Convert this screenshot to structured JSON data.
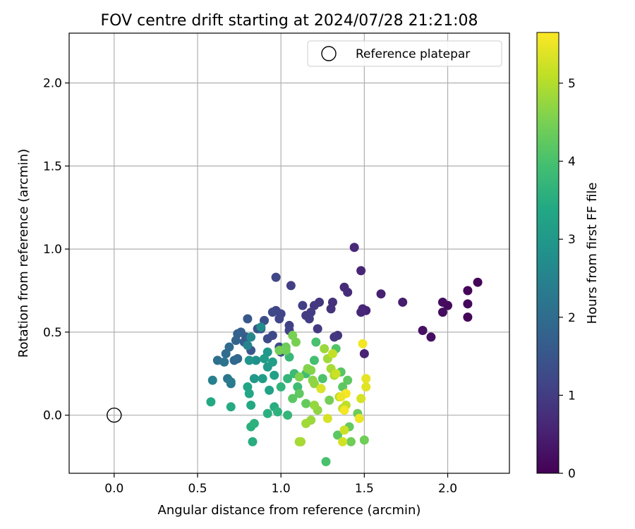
{
  "chart_data": {
    "type": "scatter",
    "title": "FOV centre drift starting at 2024/07/28 21:21:08",
    "xlabel": "Angular distance from reference (arcmin)",
    "ylabel": "Rotation from reference (arcmin)",
    "xlim": [
      -0.27,
      2.37
    ],
    "ylim": [
      -0.35,
      2.3
    ],
    "x_ticks": [
      0.0,
      0.5,
      1.0,
      1.5,
      2.0
    ],
    "x_tick_labels": [
      "0.0",
      "0.5",
      "1.0",
      "1.5",
      "2.0"
    ],
    "y_ticks": [
      0.0,
      0.5,
      1.0,
      1.5,
      2.0
    ],
    "y_tick_labels": [
      "0.0",
      "0.5",
      "1.0",
      "1.5",
      "2.0"
    ],
    "grid": true,
    "legend": {
      "placement": "top-right",
      "entries": [
        "Reference platepar"
      ]
    },
    "reference_point": {
      "x": 0.0,
      "y": 0.0,
      "label": "Reference platepar"
    },
    "colorbar": {
      "label": "Hours from first FF file",
      "range": [
        0,
        5.65
      ],
      "ticks": [
        0,
        1,
        2,
        3,
        4,
        5
      ],
      "tick_labels": [
        "0",
        "1",
        "2",
        "3",
        "4",
        "5"
      ],
      "colormap": "viridis"
    },
    "points": [
      {
        "x": 2.18,
        "y": 0.8,
        "t": 0.05
      },
      {
        "x": 2.12,
        "y": 0.75,
        "t": 0.08
      },
      {
        "x": 2.12,
        "y": 0.67,
        "t": 0.1
      },
      {
        "x": 2.12,
        "y": 0.59,
        "t": 0.07
      },
      {
        "x": 2.0,
        "y": 0.66,
        "t": 0.15
      },
      {
        "x": 1.97,
        "y": 0.68,
        "t": 0.18
      },
      {
        "x": 1.97,
        "y": 0.62,
        "t": 0.2
      },
      {
        "x": 1.85,
        "y": 0.51,
        "t": 0.25
      },
      {
        "x": 1.9,
        "y": 0.47,
        "t": 0.22
      },
      {
        "x": 1.73,
        "y": 0.68,
        "t": 0.45
      },
      {
        "x": 1.6,
        "y": 0.73,
        "t": 0.5
      },
      {
        "x": 1.51,
        "y": 0.63,
        "t": 0.55
      },
      {
        "x": 1.49,
        "y": 0.64,
        "t": 0.6
      },
      {
        "x": 1.48,
        "y": 0.62,
        "t": 0.62
      },
      {
        "x": 1.5,
        "y": 0.37,
        "t": 0.55
      },
      {
        "x": 1.48,
        "y": 0.87,
        "t": 0.6
      },
      {
        "x": 1.44,
        "y": 1.01,
        "t": 0.65
      },
      {
        "x": 1.38,
        "y": 0.77,
        "t": 0.7
      },
      {
        "x": 1.4,
        "y": 0.74,
        "t": 0.72
      },
      {
        "x": 1.31,
        "y": 0.68,
        "t": 0.8
      },
      {
        "x": 1.3,
        "y": 0.64,
        "t": 0.82
      },
      {
        "x": 1.34,
        "y": 0.48,
        "t": 0.85
      },
      {
        "x": 1.32,
        "y": 0.47,
        "t": 0.88
      },
      {
        "x": 1.23,
        "y": 0.68,
        "t": 0.9
      },
      {
        "x": 1.2,
        "y": 0.66,
        "t": 0.92
      },
      {
        "x": 1.22,
        "y": 0.52,
        "t": 0.95
      },
      {
        "x": 1.18,
        "y": 0.62,
        "t": 0.98
      },
      {
        "x": 1.15,
        "y": 0.6,
        "t": 1.0
      },
      {
        "x": 1.17,
        "y": 0.58,
        "t": 1.02
      },
      {
        "x": 1.13,
        "y": 0.66,
        "t": 1.05
      },
      {
        "x": 1.06,
        "y": 0.78,
        "t": 1.05
      },
      {
        "x": 1.05,
        "y": 0.54,
        "t": 1.1
      },
      {
        "x": 1.05,
        "y": 0.51,
        "t": 1.12
      },
      {
        "x": 1.0,
        "y": 0.61,
        "t": 1.15
      },
      {
        "x": 0.99,
        "y": 0.58,
        "t": 1.18
      },
      {
        "x": 0.97,
        "y": 0.63,
        "t": 1.2
      },
      {
        "x": 0.95,
        "y": 0.62,
        "t": 1.22
      },
      {
        "x": 0.97,
        "y": 0.83,
        "t": 1.2
      },
      {
        "x": 0.95,
        "y": 0.48,
        "t": 1.25
      },
      {
        "x": 0.92,
        "y": 0.46,
        "t": 1.3
      },
      {
        "x": 0.99,
        "y": 0.41,
        "t": 1.3
      },
      {
        "x": 1.0,
        "y": 0.38,
        "t": 1.32
      },
      {
        "x": 0.9,
        "y": 0.57,
        "t": 1.35
      },
      {
        "x": 0.88,
        "y": 0.52,
        "t": 1.4
      },
      {
        "x": 0.86,
        "y": 0.52,
        "t": 1.45
      },
      {
        "x": 0.82,
        "y": 0.39,
        "t": 1.5
      },
      {
        "x": 0.8,
        "y": 0.58,
        "t": 1.55
      },
      {
        "x": 0.79,
        "y": 0.47,
        "t": 1.6
      },
      {
        "x": 0.78,
        "y": 0.44,
        "t": 1.65
      },
      {
        "x": 0.76,
        "y": 0.5,
        "t": 1.7
      },
      {
        "x": 0.74,
        "y": 0.49,
        "t": 1.75
      },
      {
        "x": 0.73,
        "y": 0.45,
        "t": 1.8
      },
      {
        "x": 0.74,
        "y": 0.34,
        "t": 1.85
      },
      {
        "x": 0.72,
        "y": 0.33,
        "t": 1.9
      },
      {
        "x": 0.69,
        "y": 0.41,
        "t": 1.95
      },
      {
        "x": 0.67,
        "y": 0.37,
        "t": 2.0
      },
      {
        "x": 0.62,
        "y": 0.33,
        "t": 2.05
      },
      {
        "x": 0.66,
        "y": 0.32,
        "t": 2.15
      },
      {
        "x": 0.68,
        "y": 0.22,
        "t": 2.2
      },
      {
        "x": 0.7,
        "y": 0.19,
        "t": 2.3
      },
      {
        "x": 0.7,
        "y": 0.2,
        "t": 2.35
      },
      {
        "x": 0.59,
        "y": 0.21,
        "t": 2.45
      },
      {
        "x": 0.8,
        "y": 0.42,
        "t": 2.5
      },
      {
        "x": 0.82,
        "y": 0.47,
        "t": 2.6
      },
      {
        "x": 0.88,
        "y": 0.53,
        "t": 2.7
      },
      {
        "x": 0.85,
        "y": 0.33,
        "t": 2.8
      },
      {
        "x": 0.81,
        "y": 0.33,
        "t": 2.9
      },
      {
        "x": 0.84,
        "y": 0.22,
        "t": 3.0
      },
      {
        "x": 0.92,
        "y": 0.38,
        "t": 3.0
      },
      {
        "x": 0.92,
        "y": 0.29,
        "t": 3.05
      },
      {
        "x": 0.9,
        "y": 0.34,
        "t": 3.1
      },
      {
        "x": 0.89,
        "y": 0.22,
        "t": 3.1
      },
      {
        "x": 0.95,
        "y": 0.32,
        "t": 3.15
      },
      {
        "x": 0.96,
        "y": 0.24,
        "t": 3.2
      },
      {
        "x": 0.93,
        "y": 0.15,
        "t": 3.25
      },
      {
        "x": 0.8,
        "y": 0.17,
        "t": 3.3
      },
      {
        "x": 0.81,
        "y": 0.13,
        "t": 3.35
      },
      {
        "x": 0.82,
        "y": 0.06,
        "t": 3.4
      },
      {
        "x": 0.58,
        "y": 0.08,
        "t": 3.4
      },
      {
        "x": 0.7,
        "y": 0.05,
        "t": 3.45
      },
      {
        "x": 0.83,
        "y": -0.16,
        "t": 3.5
      },
      {
        "x": 0.82,
        "y": -0.07,
        "t": 3.55
      },
      {
        "x": 0.84,
        "y": -0.05,
        "t": 3.6
      },
      {
        "x": 0.92,
        "y": 0.01,
        "t": 3.55
      },
      {
        "x": 0.96,
        "y": 0.05,
        "t": 3.5
      },
      {
        "x": 0.98,
        "y": 0.02,
        "t": 3.6
      },
      {
        "x": 1.04,
        "y": 0.0,
        "t": 3.7
      },
      {
        "x": 1.0,
        "y": 0.17,
        "t": 3.65
      },
      {
        "x": 1.04,
        "y": 0.22,
        "t": 3.7
      },
      {
        "x": 1.05,
        "y": 0.35,
        "t": 3.75
      },
      {
        "x": 1.08,
        "y": 0.25,
        "t": 3.8
      },
      {
        "x": 1.1,
        "y": 0.17,
        "t": 3.85
      },
      {
        "x": 1.15,
        "y": 0.25,
        "t": 3.9
      },
      {
        "x": 1.2,
        "y": 0.33,
        "t": 3.95
      },
      {
        "x": 1.21,
        "y": 0.44,
        "t": 4.0
      },
      {
        "x": 1.25,
        "y": 0.22,
        "t": 4.05
      },
      {
        "x": 1.27,
        "y": -0.28,
        "t": 4.0
      },
      {
        "x": 1.33,
        "y": 0.4,
        "t": 4.1
      },
      {
        "x": 1.36,
        "y": 0.26,
        "t": 4.15
      },
      {
        "x": 1.37,
        "y": 0.17,
        "t": 4.2
      },
      {
        "x": 1.4,
        "y": 0.21,
        "t": 4.25
      },
      {
        "x": 1.34,
        "y": -0.12,
        "t": 4.2
      },
      {
        "x": 1.41,
        "y": -0.07,
        "t": 4.3
      },
      {
        "x": 1.46,
        "y": 0.01,
        "t": 4.35
      },
      {
        "x": 1.5,
        "y": -0.15,
        "t": 4.4
      },
      {
        "x": 1.42,
        "y": -0.16,
        "t": 4.4
      },
      {
        "x": 1.29,
        "y": 0.09,
        "t": 4.45
      },
      {
        "x": 1.15,
        "y": 0.07,
        "t": 4.3
      },
      {
        "x": 1.11,
        "y": 0.13,
        "t": 4.25
      },
      {
        "x": 1.07,
        "y": 0.1,
        "t": 4.2
      },
      {
        "x": 1.03,
        "y": 0.41,
        "t": 4.35
      },
      {
        "x": 1.03,
        "y": 0.39,
        "t": 4.4
      },
      {
        "x": 0.99,
        "y": 0.39,
        "t": 4.45
      },
      {
        "x": 1.07,
        "y": 0.48,
        "t": 4.5
      },
      {
        "x": 1.09,
        "y": 0.44,
        "t": 4.5
      },
      {
        "x": 1.11,
        "y": 0.23,
        "t": 4.55
      },
      {
        "x": 1.16,
        "y": 0.28,
        "t": 4.6
      },
      {
        "x": 1.18,
        "y": 0.27,
        "t": 4.6
      },
      {
        "x": 1.19,
        "y": 0.21,
        "t": 4.65
      },
      {
        "x": 1.2,
        "y": 0.19,
        "t": 4.7
      },
      {
        "x": 1.24,
        "y": 0.16,
        "t": 4.7
      },
      {
        "x": 1.22,
        "y": 0.03,
        "t": 4.7
      },
      {
        "x": 1.2,
        "y": 0.06,
        "t": 4.75
      },
      {
        "x": 1.18,
        "y": -0.03,
        "t": 4.8
      },
      {
        "x": 1.15,
        "y": -0.05,
        "t": 4.85
      },
      {
        "x": 1.11,
        "y": -0.16,
        "t": 4.85
      },
      {
        "x": 1.12,
        "y": -0.16,
        "t": 4.9
      },
      {
        "x": 1.26,
        "y": 0.4,
        "t": 4.8
      },
      {
        "x": 1.28,
        "y": 0.34,
        "t": 4.85
      },
      {
        "x": 1.3,
        "y": 0.28,
        "t": 4.9
      },
      {
        "x": 1.32,
        "y": 0.24,
        "t": 4.95
      },
      {
        "x": 1.35,
        "y": 0.11,
        "t": 5.0
      },
      {
        "x": 1.37,
        "y": 0.04,
        "t": 5.05
      },
      {
        "x": 1.39,
        "y": 0.06,
        "t": 5.1
      },
      {
        "x": 1.31,
        "y": 0.37,
        "t": 5.15
      },
      {
        "x": 1.33,
        "y": 0.25,
        "t": 5.2
      },
      {
        "x": 1.38,
        "y": -0.09,
        "t": 5.2
      },
      {
        "x": 1.37,
        "y": -0.16,
        "t": 5.25
      },
      {
        "x": 1.28,
        "y": -0.02,
        "t": 5.3
      },
      {
        "x": 1.24,
        "y": 0.16,
        "t": 5.35
      },
      {
        "x": 1.48,
        "y": 0.1,
        "t": 5.3
      },
      {
        "x": 1.51,
        "y": 0.17,
        "t": 5.4
      },
      {
        "x": 1.51,
        "y": 0.22,
        "t": 5.45
      },
      {
        "x": 1.47,
        "y": -0.02,
        "t": 5.5
      },
      {
        "x": 1.49,
        "y": 0.43,
        "t": 5.55
      },
      {
        "x": 1.39,
        "y": 0.13,
        "t": 5.6
      },
      {
        "x": 1.38,
        "y": 0.03,
        "t": 5.55
      },
      {
        "x": 1.36,
        "y": 0.11,
        "t": 5.5
      }
    ]
  }
}
